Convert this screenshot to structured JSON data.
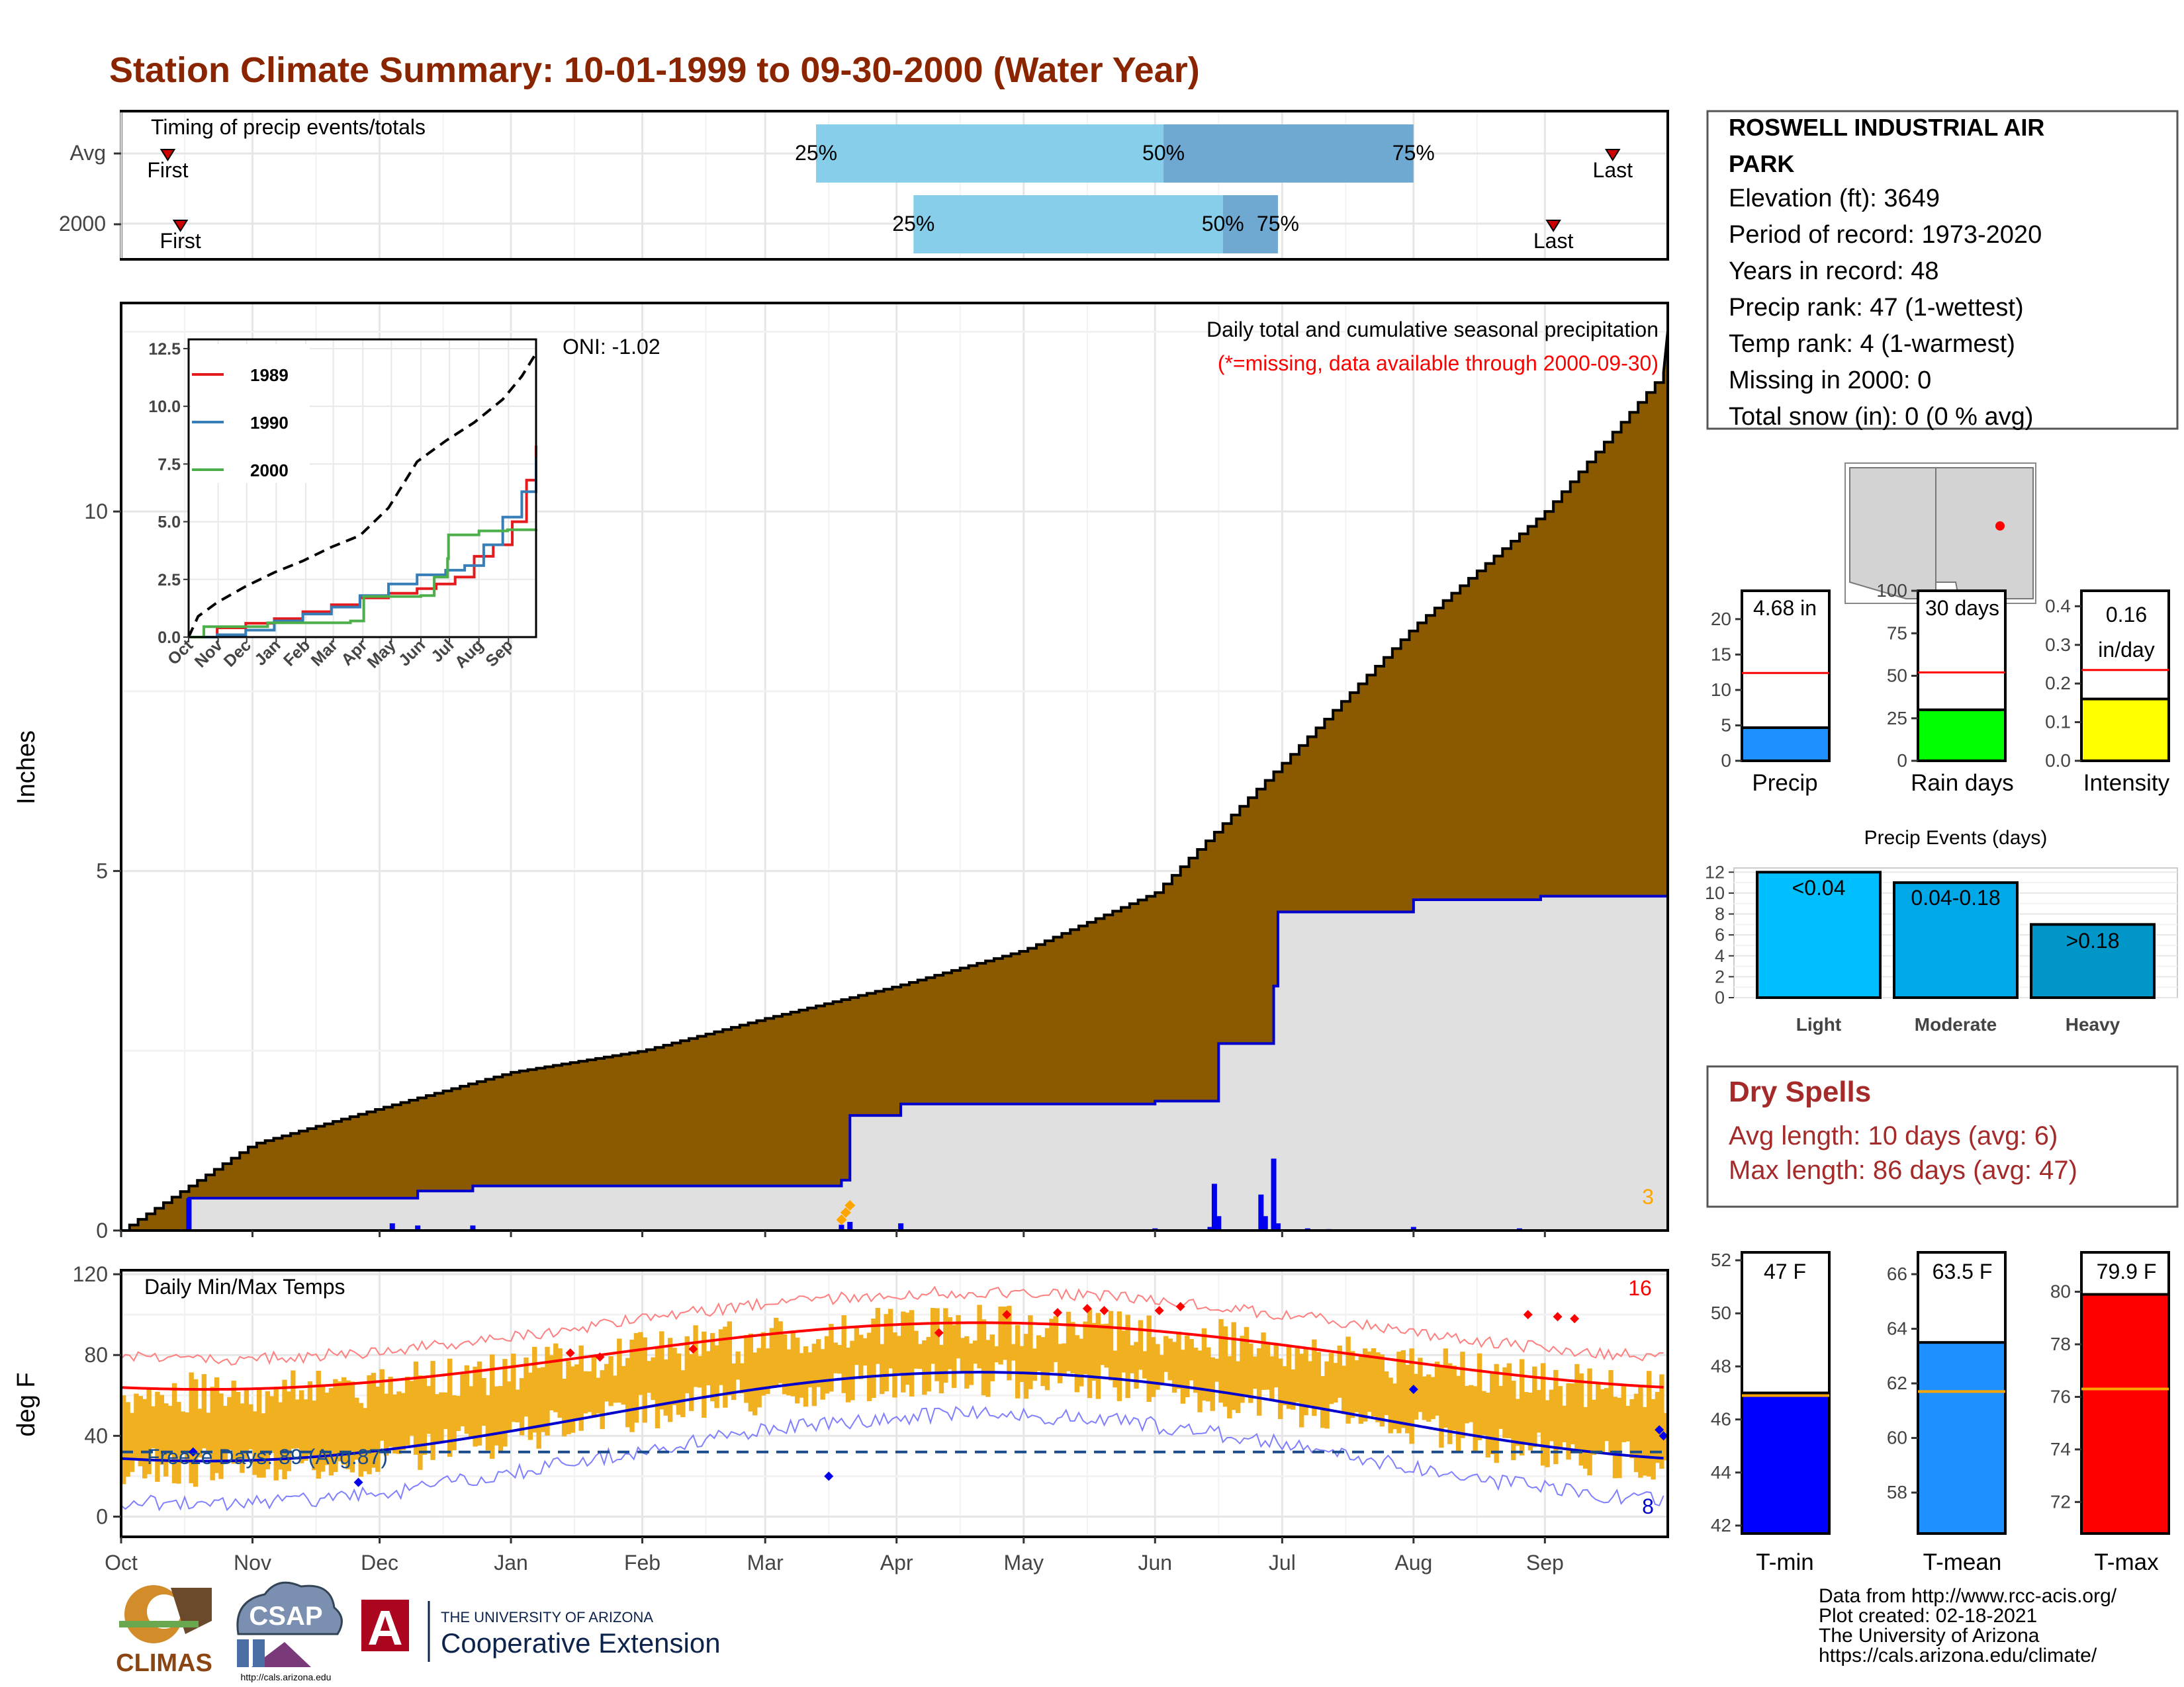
{
  "title": "Station Climate Summary: 10-01-1999 to 09-30-2000 (Water Year)",
  "colors": {
    "title": "#8b2500",
    "cum_area": "#8b5a00",
    "obs_area": "#e0e0e0",
    "precip_line": "#0000cd",
    "temp_bar": "#f0b020",
    "tmax_smooth": "#ff0000",
    "tmin_smooth": "#0000cd",
    "timing_light": "#87ceeb",
    "timing_dark": "#6fa8d0",
    "dry_spells": "#a52a2a"
  },
  "timing": {
    "title": "Timing of precip events/totals",
    "rows": [
      {
        "label": "Avg",
        "p25": "25%",
        "p50": "50%",
        "p75": "75%",
        "first": "First",
        "last": "Last",
        "p25_day": 164,
        "p50_day": 246,
        "p75_day": 305,
        "first_day": 11,
        "last_day": 352
      },
      {
        "label": "2000",
        "p25": "25%",
        "p50": "50%",
        "p75": "75%",
        "first": "First",
        "last": "Last",
        "p25_day": 187,
        "p50_day": 260,
        "p75_day": 273,
        "first_day": 14,
        "last_day": 338
      }
    ]
  },
  "precip": {
    "ylabel": "Inches",
    "y_ticks": [
      "0",
      "5",
      "10"
    ],
    "ylim": [
      0,
      12.9
    ],
    "heading": "Daily total and cumulative seasonal precipitation",
    "missing_note": "(*=missing, data available through 2000-09-30)",
    "oni": "ONI: -1.02",
    "corner_count": "3",
    "cum_avg": {
      "x": [
        0,
        31,
        61,
        92,
        123,
        152,
        183,
        213,
        244,
        274,
        305,
        336,
        365
      ],
      "y": [
        0,
        1.2,
        1.7,
        2.2,
        2.5,
        2.95,
        3.4,
        3.9,
        4.7,
        6.5,
        8.4,
        10.0,
        12.0
      ]
    },
    "cum_obs": {
      "x": [
        0,
        16,
        64,
        70,
        83,
        170,
        172,
        184,
        244,
        258,
        259,
        270,
        272,
        273,
        305,
        335,
        365
      ],
      "y": [
        0,
        0.45,
        0.45,
        0.55,
        0.62,
        0.7,
        1.6,
        1.76,
        1.8,
        1.8,
        2.6,
        2.6,
        3.4,
        4.43,
        4.6,
        4.65,
        4.68
      ]
    },
    "daily": {
      "day": [
        16,
        64,
        70,
        83,
        170,
        172,
        184,
        244,
        257,
        258,
        259,
        269,
        270,
        272,
        273,
        280,
        285,
        305,
        330
      ],
      "value": [
        0.45,
        0.1,
        0.07,
        0.07,
        0.08,
        0.12,
        0.1,
        0.03,
        0.05,
        0.65,
        0.2,
        0.5,
        0.2,
        1.0,
        0.1,
        0.03,
        0.02,
        0.05,
        0.03
      ]
    },
    "missing_markers": {
      "day": [
        171,
        172,
        173
      ],
      "value": [
        0.15,
        0.25,
        0.35
      ]
    }
  },
  "inset": {
    "y_ticks": [
      "0.0",
      "2.5",
      "5.0",
      "7.5",
      "10.0",
      "12.5"
    ],
    "x_labels": [
      "Oct",
      "Nov",
      "Dec",
      "Jan",
      "Feb",
      "Mar",
      "Apr",
      "May",
      "Jun",
      "Jul",
      "Aug",
      "Sep"
    ],
    "series": [
      {
        "name": "1989",
        "color": "#e41a1c",
        "x": [
          0,
          30,
          60,
          90,
          120,
          150,
          180,
          210,
          240,
          260,
          280,
          300,
          320,
          340,
          355,
          365
        ],
        "y": [
          0,
          0.4,
          0.6,
          0.8,
          1.1,
          1.4,
          1.7,
          1.9,
          2.1,
          2.3,
          2.6,
          3.5,
          4.0,
          5.0,
          6.8,
          8.3
        ]
      },
      {
        "name": "1990",
        "color": "#377eb8",
        "x": [
          0,
          30,
          60,
          90,
          120,
          150,
          180,
          210,
          240,
          270,
          290,
          310,
          330,
          350,
          365
        ],
        "y": [
          0,
          0.1,
          0.3,
          0.7,
          1.0,
          1.3,
          1.8,
          2.3,
          2.7,
          2.9,
          3.1,
          4.0,
          5.2,
          6.3,
          7.8
        ]
      },
      {
        "name": "2000",
        "color": "#4daf4a",
        "x": [
          0,
          16,
          64,
          83,
          170,
          184,
          244,
          258,
          272,
          273,
          305,
          335,
          365
        ],
        "y": [
          0,
          0.45,
          0.45,
          0.62,
          0.7,
          1.76,
          1.8,
          2.6,
          3.4,
          4.43,
          4.6,
          4.65,
          4.68
        ]
      }
    ],
    "max_line": {
      "x": [
        0,
        10,
        30,
        60,
        90,
        120,
        150,
        180,
        210,
        240,
        270,
        300,
        330,
        350,
        365
      ],
      "y": [
        0,
        0.9,
        1.5,
        2.2,
        2.8,
        3.3,
        3.9,
        4.4,
        5.6,
        7.6,
        8.5,
        9.3,
        10.3,
        11.3,
        12.3
      ]
    }
  },
  "temps": {
    "title": "Daily Min/Max Temps",
    "ylabel": "deg F",
    "y_ticks": [
      "0",
      "40",
      "80",
      "120"
    ],
    "ylim": [
      -10,
      122
    ],
    "freeze_text": "Freeze Days: 89 (Avg:87)",
    "freeze_level": 32,
    "max_count": "16",
    "min_count": "8",
    "x_labels": [
      "Oct",
      "Nov",
      "Dec",
      "Jan",
      "Feb",
      "Mar",
      "Apr",
      "May",
      "Jun",
      "Jul",
      "Aug",
      "Sep"
    ]
  },
  "station": {
    "name1": "ROSWELL INDUSTRIAL AIR",
    "name2": "PARK",
    "lines": [
      "Elevation (ft): 3649",
      "Period of record: 1973-2020",
      "Years in record: 48",
      "Precip rank: 47 (1-wettest)",
      "Temp rank: 4 (1-warmest)",
      "Missing in 2000: 0",
      "Total snow (in): 0 (0 % avg)"
    ]
  },
  "gauges": [
    {
      "label": "Precip",
      "value_text": "4.68 in",
      "value_text2": "",
      "value": 4.68,
      "avg": 12.4,
      "max": 24,
      "ticks": [
        "0",
        "5",
        "10",
        "15",
        "20"
      ],
      "tick_values": [
        0,
        5,
        10,
        15,
        20
      ],
      "color": "#1e90ff"
    },
    {
      "label": "Rain days",
      "value_text": "30 days",
      "value_text2": "",
      "value": 30,
      "avg": 52,
      "max": 100,
      "ticks": [
        "0",
        "25",
        "50",
        "75",
        "100"
      ],
      "tick_values": [
        0,
        25,
        50,
        75,
        100
      ],
      "color": "#00ff00"
    },
    {
      "label": "Intensity",
      "value_text": "0.16",
      "value_text2": "in/day",
      "value": 0.16,
      "avg": 0.235,
      "max": 0.44,
      "ticks": [
        "0.0",
        "0.1",
        "0.2",
        "0.3",
        "0.4"
      ],
      "tick_values": [
        0,
        0.1,
        0.2,
        0.3,
        0.4
      ],
      "color": "#ffff00"
    }
  ],
  "events": {
    "title": "Precip Events (days)",
    "ticks": [
      "0",
      "2",
      "4",
      "6",
      "8",
      "10",
      "12"
    ],
    "bars": [
      {
        "label": "Light",
        "range": "<0.04",
        "value": 12,
        "color": "#00bfff"
      },
      {
        "label": "Moderate",
        "range": "0.04-0.18",
        "value": 11,
        "color": "#00a8e8"
      },
      {
        "label": "Heavy",
        "range": ">0.18",
        "value": 7,
        "color": "#0096c8"
      }
    ]
  },
  "dry": {
    "title": "Dry Spells",
    "avg": "Avg length: 10 days (avg: 6)",
    "max": "Max length: 86 days (avg: 47)"
  },
  "tgauges": [
    {
      "label": "T-min",
      "value_text": "47 F",
      "value": 47,
      "avg": 46.9,
      "min": 41.7,
      "max": 52.3,
      "ticks": [
        "42",
        "44",
        "46",
        "48",
        "50",
        "52"
      ],
      "tick_values": [
        42,
        44,
        46,
        48,
        50,
        52
      ],
      "color": "#0000ff"
    },
    {
      "label": "T-mean",
      "value_text": "63.5 F",
      "value": 63.5,
      "avg": 61.7,
      "min": 56.5,
      "max": 66.8,
      "ticks": [
        "58",
        "60",
        "62",
        "64",
        "66"
      ],
      "tick_values": [
        58,
        60,
        62,
        64,
        66
      ],
      "color": "#1e90ff"
    },
    {
      "label": "T-max",
      "value_text": "79.9 F",
      "value": 79.9,
      "avg": 76.3,
      "min": 70.8,
      "max": 81.5,
      "ticks": [
        "72",
        "74",
        "76",
        "78",
        "80"
      ],
      "tick_values": [
        72,
        74,
        76,
        78,
        80
      ],
      "color": "#ff0000"
    }
  ],
  "footer": {
    "lines": [
      "Data from http://www.rcc-acis.org/",
      "Plot created: 02-18-2021",
      "The University of Arizona",
      "https://cals.arizona.edu/climate/"
    ]
  },
  "logos": {
    "climas": "CLIMAS",
    "csap": "CSAP",
    "csap_url": "http://cals.arizona.edu",
    "ua_top": "THE UNIVERSITY OF ARIZONA",
    "ua_main": "Cooperative Extension",
    "ua_letter": "A"
  }
}
